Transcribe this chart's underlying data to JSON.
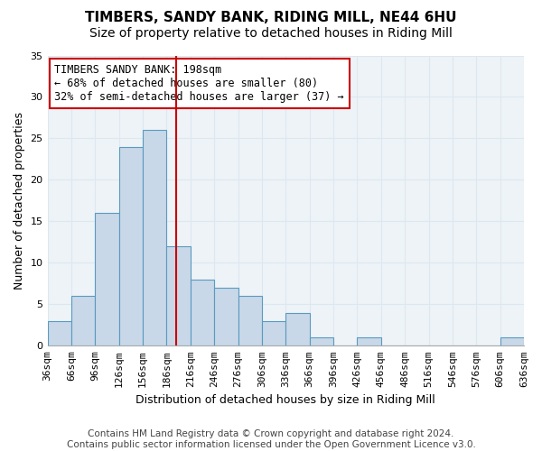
{
  "title": "TIMBERS, SANDY BANK, RIDING MILL, NE44 6HU",
  "subtitle": "Size of property relative to detached houses in Riding Mill",
  "xlabel": "Distribution of detached houses by size in Riding Mill",
  "ylabel": "Number of detached properties",
  "footer_line1": "Contains HM Land Registry data © Crown copyright and database right 2024.",
  "footer_line2": "Contains public sector information licensed under the Open Government Licence v3.0.",
  "annotation_line1": "TIMBERS SANDY BANK: 198sqm",
  "annotation_line2": "← 68% of detached houses are smaller (80)",
  "annotation_line3": "32% of semi-detached houses are larger (37) →",
  "property_size": 198,
  "bin_edges": [
    36,
    66,
    96,
    126,
    156,
    186,
    216,
    246,
    276,
    306,
    336,
    366,
    396,
    426,
    456,
    486,
    516,
    546,
    576,
    606,
    636
  ],
  "bin_labels": [
    "36sqm",
    "66sqm",
    "96sqm",
    "126sqm",
    "156sqm",
    "186sqm",
    "216sqm",
    "246sqm",
    "276sqm",
    "306sqm",
    "336sqm",
    "366sqm",
    "396sqm",
    "426sqm",
    "456sqm",
    "486sqm",
    "516sqm",
    "546sqm",
    "576sqm",
    "606sqm",
    "636sqm"
  ],
  "counts": [
    3,
    6,
    16,
    24,
    26,
    12,
    8,
    7,
    6,
    3,
    4,
    1,
    0,
    1,
    0,
    0,
    0,
    0,
    0,
    1
  ],
  "bar_color": "#c8d8e8",
  "bar_edge_color": "#5a9abf",
  "vline_color": "#cc0000",
  "vline_x": 198,
  "grid_color": "#dce8f0",
  "bg_color": "#eef3f8",
  "ylim": [
    0,
    35
  ],
  "yticks": [
    0,
    5,
    10,
    15,
    20,
    25,
    30,
    35
  ],
  "title_fontsize": 11,
  "subtitle_fontsize": 10,
  "axis_label_fontsize": 9,
  "tick_fontsize": 8,
  "annotation_fontsize": 8.5,
  "footer_fontsize": 7.5
}
